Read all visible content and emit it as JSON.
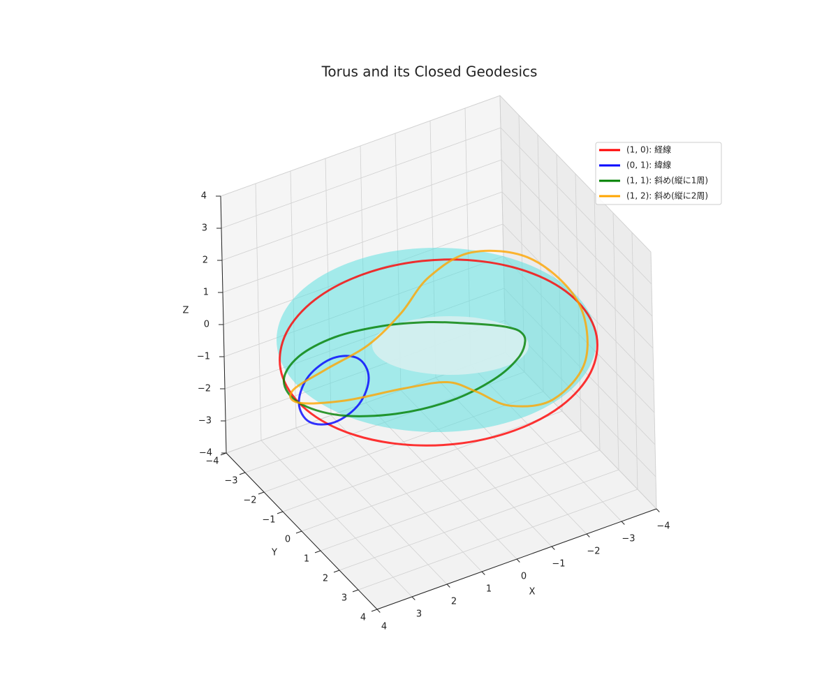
{
  "chart_data": {
    "type": "line3d",
    "title": "Torus and its Closed Geodesics",
    "xlabel": "X",
    "ylabel": "Y",
    "zlabel": "Z",
    "xlim": [
      -4,
      4
    ],
    "ylim": [
      -4,
      4
    ],
    "zlim": [
      -4,
      4
    ],
    "xticks": [
      {
        "value": -4,
        "label": "−4"
      },
      {
        "value": -3,
        "label": "−3"
      },
      {
        "value": -2,
        "label": "−2"
      },
      {
        "value": -1,
        "label": "−1"
      },
      0,
      1,
      2,
      3,
      4
    ],
    "yticks": [
      {
        "value": -4,
        "label": "−4"
      },
      {
        "value": -3,
        "label": "−3"
      },
      {
        "value": -2,
        "label": "−2"
      },
      {
        "value": -1,
        "label": "−1"
      },
      0,
      1,
      2,
      3,
      4
    ],
    "zticks": [
      {
        "value": -4,
        "label": "−4"
      },
      {
        "value": -3,
        "label": "−3"
      },
      {
        "value": -2,
        "label": "−2"
      },
      {
        "value": -1,
        "label": "−1"
      },
      0,
      1,
      2,
      3,
      4
    ],
    "grid": true,
    "legend": "upper right",
    "series": [
      {
        "name": "(1, 0): 経線",
        "color": "#ff0000",
        "x": [
          4,
          3.7,
          2.83,
          1.53,
          0,
          -1.53,
          -2.83,
          -3.7,
          -4,
          -3.7,
          -2.83,
          -1.53,
          0,
          1.53,
          2.83,
          3.7
        ],
        "y": [
          0,
          1.53,
          2.83,
          3.7,
          4,
          3.7,
          2.83,
          1.53,
          0,
          -1.53,
          -2.83,
          -3.7,
          -4,
          -3.7,
          -2.83,
          -1.53
        ],
        "z": [
          0,
          0,
          0,
          0,
          0,
          0,
          0,
          0,
          0,
          0,
          0,
          0,
          0,
          0,
          0,
          0
        ]
      },
      {
        "name": "(0, 1): 緯線",
        "color": "#0000ff",
        "x": [
          4,
          3.92,
          3.71,
          3.38,
          3,
          2.62,
          2.29,
          2.08,
          2,
          2.08,
          2.29,
          2.62,
          3,
          3.38,
          3.71,
          3.92
        ],
        "y": [
          0,
          0,
          0,
          0,
          0,
          0,
          0,
          0,
          0,
          0,
          0,
          0,
          0,
          0,
          0,
          0
        ],
        "z": [
          0,
          0.38,
          0.71,
          0.92,
          1,
          0.92,
          0.71,
          0.38,
          0,
          -0.38,
          -0.71,
          -0.92,
          -1,
          -0.92,
          -0.71,
          -0.38
        ]
      },
      {
        "name": "(1, 1): 斜め(縦に1周)",
        "color": "#008000",
        "x": [
          4,
          3.63,
          2.62,
          1.3,
          0,
          -1,
          -1.62,
          -1.92,
          -2,
          -1.92,
          -1.62,
          -1,
          0,
          1.3,
          2.62,
          3.63
        ],
        "y": [
          0,
          1.5,
          2.62,
          3.13,
          3,
          2.42,
          1.62,
          0.8,
          0,
          -0.8,
          -1.62,
          -2.42,
          -3,
          -3.13,
          -2.62,
          -1.5
        ],
        "z": [
          0,
          0.38,
          0.71,
          0.92,
          1,
          0.92,
          0.71,
          0.38,
          0,
          -0.38,
          -0.71,
          -0.92,
          -1,
          -0.92,
          -0.71,
          -0.38
        ]
      },
      {
        "name": "(1, 2): 斜め(縦に2周)",
        "color": "#ffa500",
        "x": [
          4,
          3.43,
          2.12,
          0.88,
          0,
          -0.88,
          -2.12,
          -3.43,
          -4,
          -3.43,
          -2.12,
          -0.88,
          0,
          0.88,
          2.12,
          3.43
        ],
        "y": [
          0,
          1.42,
          2.12,
          2.12,
          2,
          2.12,
          2.12,
          1.42,
          0,
          -1.42,
          -2.12,
          -2.12,
          -2,
          -2.12,
          -2.12,
          -1.42
        ],
        "z": [
          0,
          0.71,
          1,
          0.71,
          0,
          -0.71,
          -1,
          -0.71,
          0,
          0.71,
          1,
          0.71,
          0,
          -0.71,
          -1,
          -0.71
        ]
      }
    ]
  }
}
